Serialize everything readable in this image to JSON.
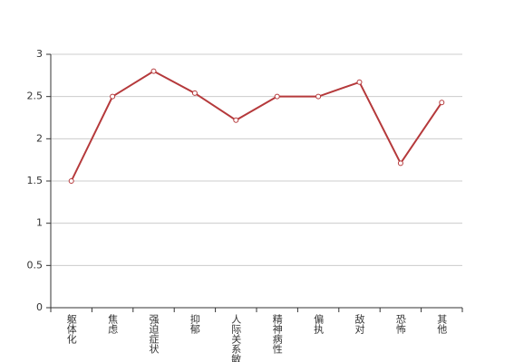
{
  "chart_data": {
    "type": "line",
    "categories": [
      "躯体化",
      "焦虑",
      "强迫症状",
      "抑郁",
      "人际关系敏感",
      "精神病性",
      "偏执",
      "敌对",
      "恐怖",
      "其他"
    ],
    "values": [
      1.5,
      2.5,
      2.8,
      2.54,
      2.22,
      2.5,
      2.5,
      2.67,
      1.71,
      2.43
    ],
    "color": "#b5393b",
    "ylim": [
      0,
      3
    ],
    "yticks": [
      0,
      0.5,
      1,
      1.5,
      2,
      2.5,
      3
    ],
    "grid": true
  }
}
